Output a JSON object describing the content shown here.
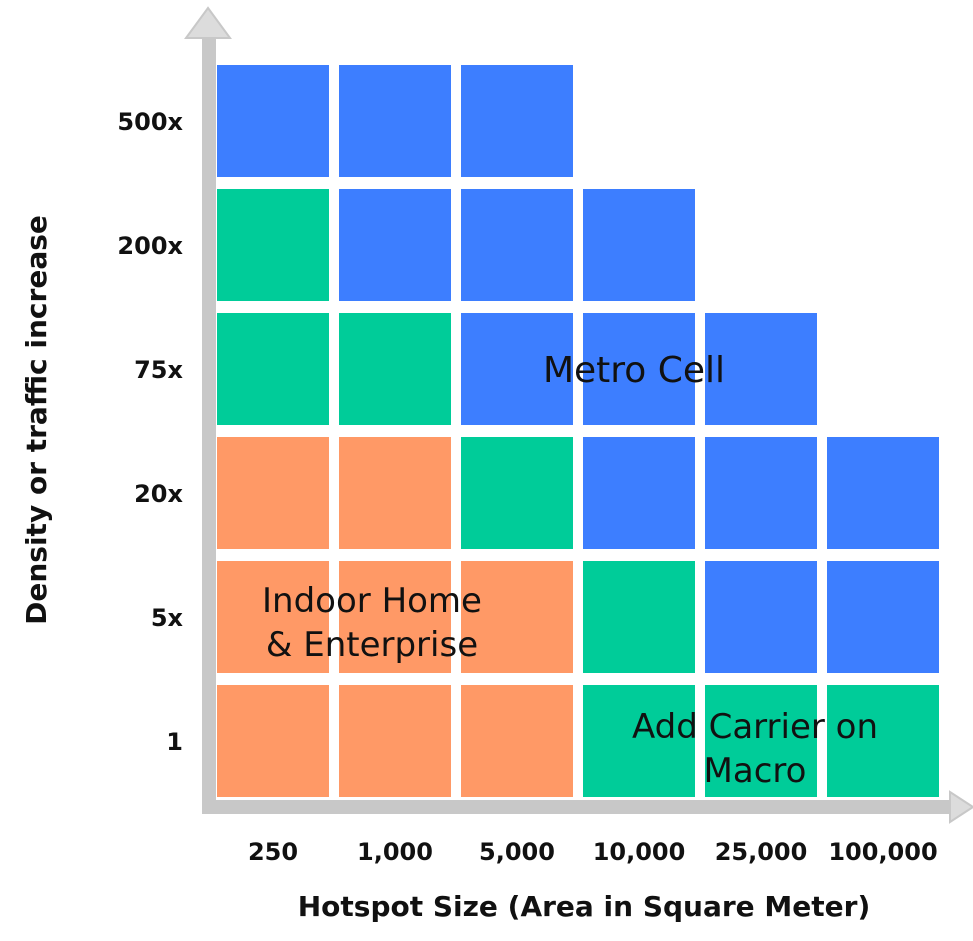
{
  "chart_data": {
    "type": "heatmap",
    "xlabel": "Hotspot Size (Area in Square Meter)",
    "ylabel": "Density or traffic increase",
    "x_categories": [
      "250",
      "1,000",
      "5,000",
      "10,000",
      "25,000",
      "100,000"
    ],
    "y_categories": [
      "500x",
      "200x",
      "75x",
      "20x",
      "5x",
      "1"
    ],
    "legend": [
      {
        "key": "metro",
        "name": "Metro Cell",
        "color": "#3D7EFF"
      },
      {
        "key": "carrier",
        "name": "Add Carrier on Macro",
        "color": "#00CC99"
      },
      {
        "key": "indoor",
        "name": "Indoor Home & Enterprise",
        "color": "#FF9966"
      }
    ],
    "grid": [
      [
        "metro",
        "metro",
        "metro",
        null,
        null,
        null
      ],
      [
        "carrier",
        "metro",
        "metro",
        "metro",
        null,
        null
      ],
      [
        "carrier",
        "carrier",
        "metro",
        "metro",
        "metro",
        null
      ],
      [
        "indoor",
        "indoor",
        "carrier",
        "metro",
        "metro",
        "metro"
      ],
      [
        "indoor",
        "indoor",
        "indoor",
        "carrier",
        "metro",
        "metro"
      ],
      [
        "indoor",
        "indoor",
        "indoor",
        "carrier",
        "carrier",
        "carrier"
      ]
    ],
    "labels": {
      "metro": [
        "Metro Cell"
      ],
      "indoor": [
        "Indoor Home",
        "& Enterprise"
      ],
      "carrier": [
        "Add Carrier on",
        "Macro"
      ]
    }
  }
}
